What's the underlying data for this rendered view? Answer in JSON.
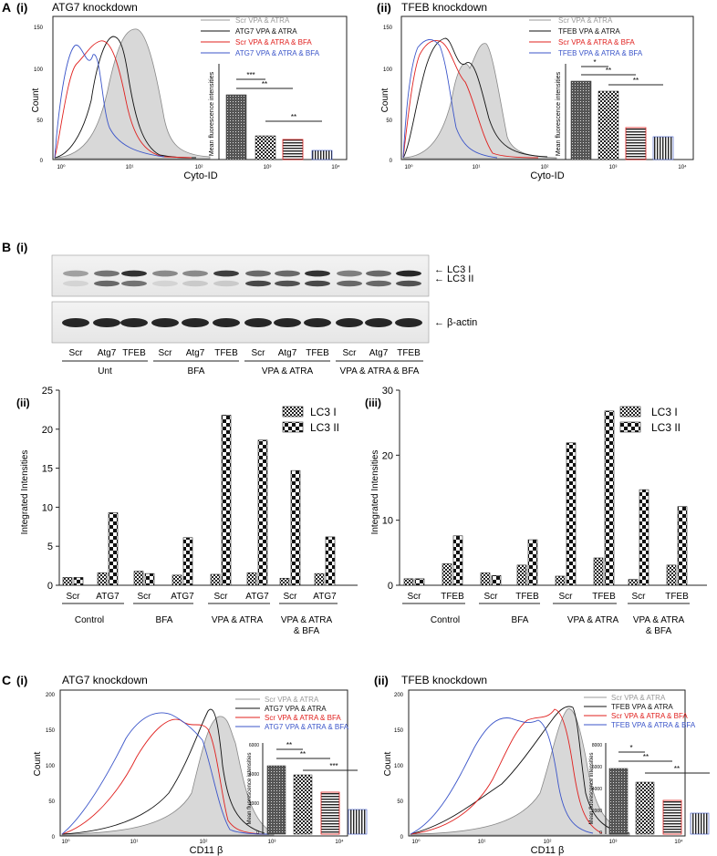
{
  "figure": {
    "panelA": {
      "letter": "A",
      "sub1": {
        "roman": "(i)",
        "title": "ATG7 knockdown",
        "xlabel": "Cyto-ID",
        "ylabel": "Count",
        "yticks": [
          "0",
          "50",
          "100",
          "150"
        ],
        "xticks": [
          "10⁰",
          "10¹",
          "10²",
          "10³",
          "10⁴"
        ],
        "legend": [
          "Scr VPA & ATRA",
          "ATG7 VPA & ATRA",
          "Scr VPA & ATRA & BFA",
          "ATG7 VPA & ATRA & BFA"
        ],
        "inset_ylabel": "Mean fluorescence intensities",
        "sig": [
          "***",
          "**",
          "**"
        ]
      },
      "sub2": {
        "roman": "(ii)",
        "title": "TFEB knockdown",
        "xlabel": "Cyto-ID",
        "ylabel": "Count",
        "yticks": [
          "0",
          "50",
          "100",
          "150"
        ],
        "xticks": [
          "10⁰",
          "10¹",
          "10²",
          "10³",
          "10⁴"
        ],
        "legend": [
          "Scr VPA & ATRA",
          "TFEB VPA & ATRA",
          "Scr VPA & ATRA & BFA",
          "TFEB VPA & ATRA & BFA"
        ],
        "inset_ylabel": "Mean fluorescence intensities",
        "sig": [
          "*",
          "**",
          "**"
        ]
      }
    },
    "panelB": {
      "letter": "B",
      "roman": "(i)",
      "blot_labels": [
        "← LC3 I",
        "← LC3 II",
        "← β-actin"
      ],
      "lanes": [
        "Scr",
        "Atg7",
        "TFEB",
        "Scr",
        "Atg7",
        "TFEB",
        "Scr",
        "Atg7",
        "TFEB",
        "Scr",
        "Atg7",
        "TFEB"
      ],
      "groups": [
        "Unt",
        "BFA",
        "VPA  & ATRA",
        "VPA & ATRA & BFA"
      ]
    },
    "panelC": {
      "letter": "C",
      "sub1": {
        "roman": "(i)",
        "title": "ATG7 knockdown",
        "xlabel": "CD11 β",
        "ylabel": "Count",
        "yticks": [
          "0",
          "50",
          "100",
          "150",
          "200"
        ],
        "xticks": [
          "10⁰",
          "10¹",
          "10²",
          "10³",
          "10⁴"
        ],
        "legend": [
          "Scr VPA & ATRA",
          "ATG7 VPA & ATRA",
          "Scr VPA & ATRA & BFA",
          "ATG7 VPA & ATRA & BFA"
        ],
        "inset_ylabel": "Mean fluorescence intensities",
        "inset_yticks": [
          "0",
          "2000",
          "4000",
          "6000"
        ],
        "sig": [
          "**",
          "**",
          "***"
        ]
      },
      "sub2": {
        "roman": "(ii)",
        "title": "TFEB knockdown",
        "xlabel": "CD11 β",
        "ylabel": "Count",
        "yticks": [
          "0",
          "50",
          "100",
          "150",
          "200"
        ],
        "xticks": [
          "10⁰",
          "10¹",
          "10²",
          "10³",
          "10⁴"
        ],
        "legend": [
          "Scr VPA & ATRA",
          "TFEB VPA & ATRA",
          "Scr VPA & ATRA & BFA",
          "TFEB VPA & ATRA & BFA"
        ],
        "inset_ylabel": "Mean fluorescence intensities",
        "inset_yticks": [
          "0",
          "2000",
          "4000",
          "6000",
          "8000"
        ],
        "sig": [
          "*",
          "**",
          "**"
        ]
      }
    },
    "colors": {
      "scr": "#999999",
      "kd": "#111111",
      "scr_bfa": "#e0201e",
      "kd_bfa": "#3b55c9",
      "fill": "#d8d8d8"
    }
  },
  "chart_data": [
    {
      "type": "bar",
      "id": "Bii",
      "label": "(ii)",
      "ylabel": "Integrated Intensities",
      "ylim": [
        0,
        25
      ],
      "yticks": [
        0,
        5,
        10,
        15,
        20,
        25
      ],
      "categories": [
        "Scr",
        "ATG7",
        "Scr",
        "ATG7",
        "Scr",
        "ATG7",
        "Scr",
        "ATG7"
      ],
      "groups": [
        "Control",
        "BFA",
        "VPA & ATRA",
        "VPA & ATRA",
        "& BFA"
      ],
      "series": [
        {
          "name": "LC3 I",
          "values": [
            1.0,
            1.6,
            1.8,
            1.3,
            1.4,
            1.6,
            0.9,
            1.5
          ]
        },
        {
          "name": "LC3 II",
          "values": [
            1.0,
            9.3,
            1.5,
            6.1,
            21.8,
            18.6,
            14.7,
            6.2
          ]
        }
      ]
    },
    {
      "type": "bar",
      "id": "Biii",
      "label": "(iii)",
      "ylabel": "Integrated Intensities",
      "ylim": [
        0,
        30
      ],
      "yticks": [
        0,
        10,
        20,
        30
      ],
      "categories": [
        "Scr",
        "TFEB",
        "Scr",
        "TFEB",
        "Scr",
        "TFEB",
        "Scr",
        "TFEB"
      ],
      "groups": [
        "Control",
        "BFA",
        "VPA & ATRA",
        "VPA & ATRA",
        "& BFA"
      ],
      "series": [
        {
          "name": "LC3 I",
          "values": [
            1.0,
            3.3,
            1.9,
            3.1,
            1.4,
            4.2,
            0.9,
            3.1
          ]
        },
        {
          "name": "LC3 II",
          "values": [
            1.0,
            7.6,
            1.5,
            7.0,
            21.9,
            26.8,
            14.7,
            12.1
          ]
        }
      ]
    }
  ]
}
